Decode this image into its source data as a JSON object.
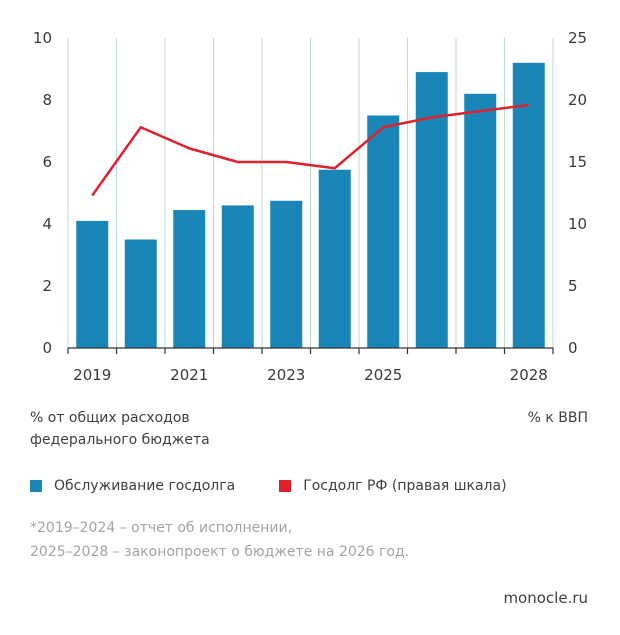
{
  "chart_data": {
    "type": "bar+line",
    "categories": [
      "2019",
      "2020",
      "2021",
      "2022",
      "2023",
      "2024",
      "2025",
      "2026",
      "2027",
      "2028"
    ],
    "x_tick_labels": [
      "2019",
      "",
      "2021",
      "",
      "2023",
      "",
      "2025",
      "",
      "",
      "2028"
    ],
    "series": [
      {
        "name": "Обслуживание госдолга",
        "type": "bar",
        "axis": "left",
        "color": "#1a86b8",
        "values": [
          4.1,
          3.5,
          4.45,
          4.6,
          4.75,
          5.75,
          7.5,
          8.9,
          8.2,
          9.2
        ]
      },
      {
        "name": "Госдолг РФ (правая шкала)",
        "type": "line",
        "axis": "right",
        "color": "#e0202c",
        "values": [
          12.3,
          17.8,
          16.1,
          15.0,
          15.0,
          14.5,
          17.8,
          18.6,
          19.1,
          19.6
        ]
      }
    ],
    "ylim_left": [
      0,
      10
    ],
    "ylim_right": [
      0,
      25
    ],
    "yticks_left": [
      "0",
      "2",
      "4",
      "6",
      "8",
      "10"
    ],
    "yticks_right": [
      "0",
      "5",
      "10",
      "15",
      "20",
      "25"
    ],
    "ylabel_left": "% от общих расходов\nфедерального бюджета",
    "ylabel_right": "% к ВВП",
    "grid": "vertical",
    "grid_color": "#b9dcc8",
    "legend_position": "bottom"
  },
  "notes": {
    "left_axis_line1": "% от общих расходов",
    "left_axis_line2": "федерального бюджета",
    "right_axis": "% к ВВП"
  },
  "legend": {
    "bar_label": "Обслуживание госдолга",
    "line_label": "Госдолг РФ (правая шкала)"
  },
  "footnote": {
    "line1": "*2019–2024 – отчет об исполнении,",
    "line2": "2025–2028 – законопроект о бюджете на 2026 год."
  },
  "source": "monocle.ru"
}
